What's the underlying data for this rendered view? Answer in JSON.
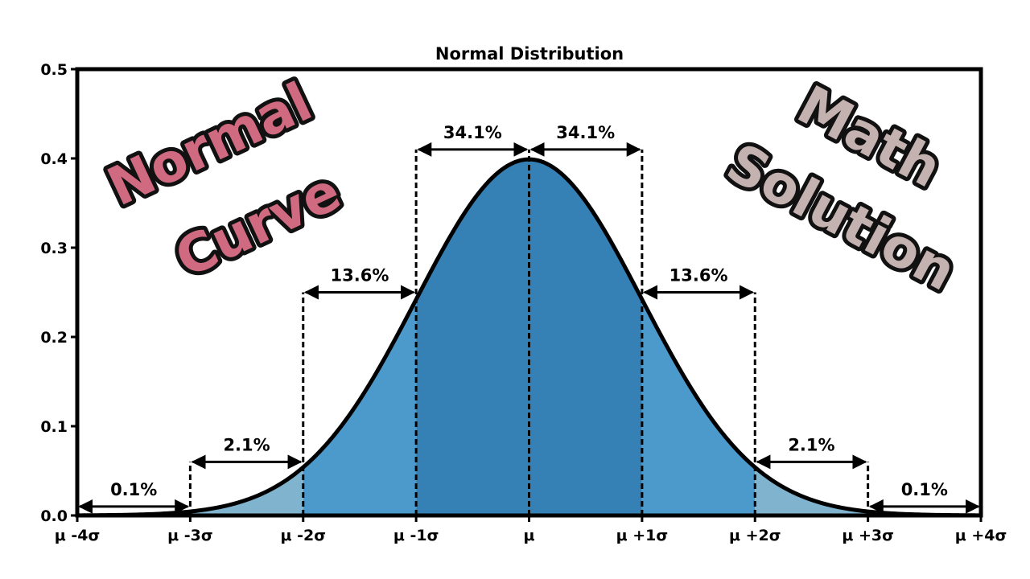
{
  "overlay": {
    "left_line1": "Normal",
    "left_line2": "Curve",
    "right_line1": "Math",
    "right_line2": "Solution",
    "left_color": "#d06a80",
    "right_color": "#c4b2b0"
  },
  "chart_data": {
    "type": "area",
    "title": "Normal Distribution",
    "xlabel": "",
    "ylabel": "",
    "xlim": [
      -4,
      4
    ],
    "ylim": [
      0,
      0.5
    ],
    "grid": false,
    "x_ticks": [
      -4,
      -3,
      -2,
      -1,
      0,
      1,
      2,
      3,
      4
    ],
    "x_tick_labels": [
      "μ -4σ",
      "μ -3σ",
      "μ -2σ",
      "μ -1σ",
      "μ",
      "μ +1σ",
      "μ +2σ",
      "μ +3σ",
      "μ +4σ"
    ],
    "y_ticks": [
      0,
      0.1,
      0.2,
      0.3,
      0.4,
      0.5
    ],
    "y_tick_labels": [
      "0.0",
      "0.1",
      "0.2",
      "0.3",
      "0.4",
      "0.5"
    ],
    "curve": {
      "mean": 0,
      "sd": 1
    },
    "regions": [
      {
        "from": -3,
        "to": -2,
        "color": "#80b3ce"
      },
      {
        "from": -2,
        "to": -1,
        "color": "#4c99cc"
      },
      {
        "from": -1,
        "to": 1,
        "color": "#3580b5"
      },
      {
        "from": 1,
        "to": 2,
        "color": "#4c99cc"
      },
      {
        "from": 2,
        "to": 3,
        "color": "#80b3ce"
      }
    ],
    "annotations": [
      {
        "label": "0.1%",
        "from": -4,
        "to": -3,
        "y": 0.01
      },
      {
        "label": "2.1%",
        "from": -3,
        "to": -2,
        "y": 0.06
      },
      {
        "label": "13.6%",
        "from": -2,
        "to": -1,
        "y": 0.25
      },
      {
        "label": "34.1%",
        "from": -1,
        "to": 0,
        "y": 0.41
      },
      {
        "label": "34.1%",
        "from": 0,
        "to": 1,
        "y": 0.41
      },
      {
        "label": "13.6%",
        "from": 1,
        "to": 2,
        "y": 0.25
      },
      {
        "label": "2.1%",
        "from": 2,
        "to": 3,
        "y": 0.06
      },
      {
        "label": "0.1%",
        "from": 3,
        "to": 4,
        "y": 0.01
      }
    ]
  }
}
